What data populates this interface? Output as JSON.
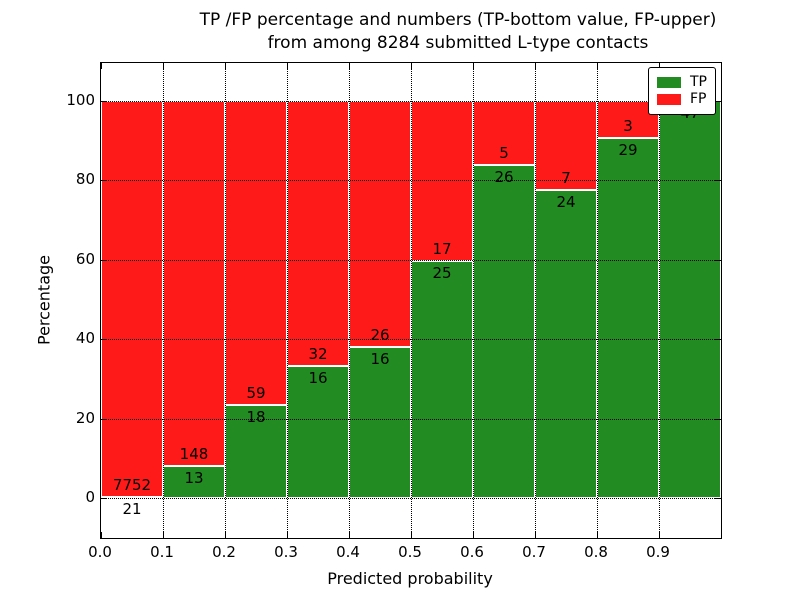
{
  "title": {
    "line1": "TP /FP percentage and numbers (TP-bottom value, FP-upper)",
    "line2": "from among 8284 submitted L-type contacts"
  },
  "axes": {
    "xlabel": "Predicted probability",
    "ylabel": "Percentage",
    "x_tick_labels": [
      "0.0",
      "0.1",
      "0.2",
      "0.3",
      "0.4",
      "0.5",
      "0.6",
      "0.7",
      "0.8",
      "0.9"
    ],
    "y_tick_labels": [
      "0",
      "20",
      "40",
      "60",
      "80",
      "100"
    ]
  },
  "legend": {
    "items": [
      {
        "label": "TP",
        "color": "#228B22"
      },
      {
        "label": "FP",
        "color": "#FF1A1A"
      }
    ]
  },
  "chart_data": {
    "type": "bar",
    "stacked": true,
    "normalized_to_percent": true,
    "title": "TP /FP percentage and numbers (TP-bottom value, FP-upper) from among 8284 submitted L-type contacts",
    "xlabel": "Predicted probability",
    "ylabel": "Percentage",
    "total_contacts": 8284,
    "bin_starts": [
      0.0,
      0.1,
      0.2,
      0.3,
      0.4,
      0.5,
      0.6,
      0.7,
      0.8,
      0.9
    ],
    "bin_width": 0.1,
    "series": [
      {
        "name": "TP",
        "color": "#228B22",
        "values": [
          21,
          13,
          18,
          16,
          16,
          25,
          26,
          24,
          29,
          47
        ]
      },
      {
        "name": "FP",
        "color": "#FF1A1A",
        "values": [
          7752,
          148,
          59,
          32,
          26,
          17,
          5,
          7,
          3,
          0
        ]
      }
    ],
    "tp_percent": [
      0.27,
      8.07,
      23.38,
      33.33,
      38.1,
      59.52,
      83.87,
      77.42,
      90.63,
      100.0
    ],
    "xlim": [
      0.0,
      1.0
    ],
    "ylim": [
      -10,
      110
    ],
    "y_ticks": [
      0,
      20,
      40,
      60,
      80,
      100
    ],
    "grid": true,
    "grid_style": "dotted",
    "legend_position": "upper right"
  }
}
